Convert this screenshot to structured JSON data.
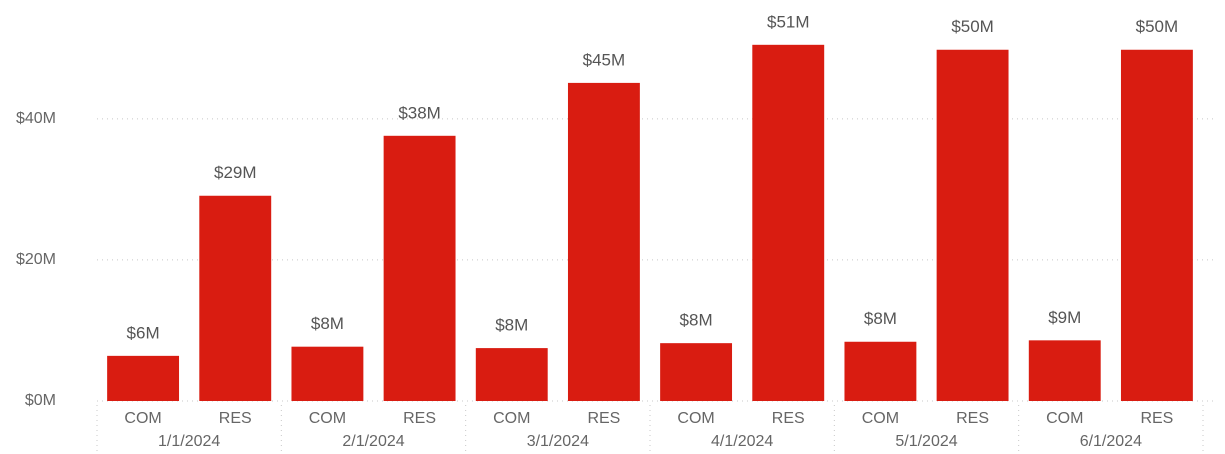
{
  "chart_data": {
    "type": "bar",
    "groups": [
      "1/1/2024",
      "2/1/2024",
      "3/1/2024",
      "4/1/2024",
      "5/1/2024",
      "6/1/2024"
    ],
    "categories": [
      "COM",
      "RES",
      "COM",
      "RES",
      "COM",
      "RES",
      "COM",
      "RES",
      "COM",
      "RES",
      "COM",
      "RES"
    ],
    "values": [
      6.4,
      29.1,
      7.7,
      37.6,
      7.5,
      45.1,
      8.2,
      50.5,
      8.4,
      49.8,
      8.6,
      49.8
    ],
    "value_labels": [
      "$6M",
      "$29M",
      "$8M",
      "$38M",
      "$8M",
      "$45M",
      "$8M",
      "$51M",
      "$8M",
      "$50M",
      "$9M",
      "$50M"
    ],
    "color": "#d91c11",
    "ylim": [
      0,
      52.6
    ],
    "yticks": [
      {
        "value": 0,
        "label": "$0M"
      },
      {
        "value": 20,
        "label": "$20M"
      },
      {
        "value": 40,
        "label": "$40M"
      }
    ],
    "grid": true
  }
}
